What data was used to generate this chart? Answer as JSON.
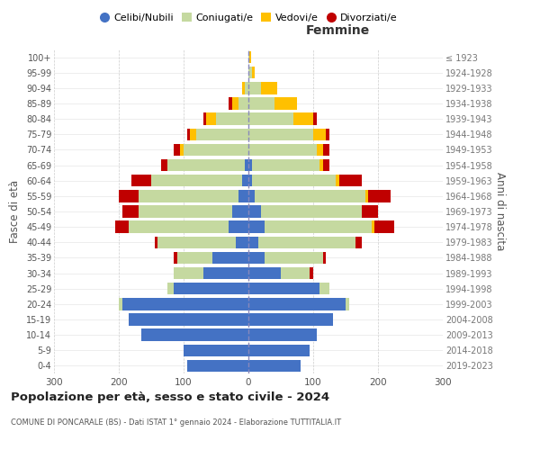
{
  "age_groups": [
    "0-4",
    "5-9",
    "10-14",
    "15-19",
    "20-24",
    "25-29",
    "30-34",
    "35-39",
    "40-44",
    "45-49",
    "50-54",
    "55-59",
    "60-64",
    "65-69",
    "70-74",
    "75-79",
    "80-84",
    "85-89",
    "90-94",
    "95-99",
    "100+"
  ],
  "birth_years": [
    "2019-2023",
    "2014-2018",
    "2009-2013",
    "2004-2008",
    "1999-2003",
    "1994-1998",
    "1989-1993",
    "1984-1988",
    "1979-1983",
    "1974-1978",
    "1969-1973",
    "1964-1968",
    "1959-1963",
    "1954-1958",
    "1949-1953",
    "1944-1948",
    "1939-1943",
    "1934-1938",
    "1929-1933",
    "1924-1928",
    "≤ 1923"
  ],
  "male": {
    "celibe": [
      95,
      100,
      165,
      185,
      195,
      115,
      70,
      55,
      20,
      30,
      25,
      15,
      10,
      5,
      0,
      0,
      0,
      0,
      0,
      0,
      0
    ],
    "coniugato": [
      0,
      0,
      0,
      0,
      5,
      10,
      45,
      55,
      120,
      155,
      145,
      155,
      140,
      120,
      100,
      80,
      50,
      15,
      5,
      0,
      0
    ],
    "vedovo": [
      0,
      0,
      0,
      0,
      0,
      0,
      0,
      0,
      0,
      0,
      0,
      0,
      0,
      0,
      5,
      10,
      15,
      10,
      5,
      0,
      0
    ],
    "divorziato": [
      0,
      0,
      0,
      0,
      0,
      0,
      0,
      5,
      5,
      20,
      25,
      30,
      30,
      10,
      10,
      5,
      5,
      5,
      0,
      0,
      0
    ]
  },
  "female": {
    "nubile": [
      80,
      95,
      105,
      130,
      150,
      110,
      50,
      25,
      15,
      25,
      20,
      10,
      5,
      5,
      0,
      0,
      0,
      0,
      0,
      0,
      0
    ],
    "coniugata": [
      0,
      0,
      0,
      0,
      5,
      15,
      45,
      90,
      150,
      165,
      155,
      170,
      130,
      105,
      105,
      100,
      70,
      40,
      20,
      5,
      2
    ],
    "vedova": [
      0,
      0,
      0,
      0,
      0,
      0,
      0,
      0,
      0,
      5,
      0,
      5,
      5,
      5,
      10,
      20,
      30,
      35,
      25,
      5,
      2
    ],
    "divorziata": [
      0,
      0,
      0,
      0,
      0,
      0,
      5,
      5,
      10,
      30,
      25,
      35,
      35,
      10,
      10,
      5,
      5,
      0,
      0,
      0,
      0
    ]
  },
  "colors": {
    "celibe": "#4472c4",
    "coniugato": "#c5d9a0",
    "vedovo": "#ffc000",
    "divorziato": "#c00000"
  },
  "title": "Popolazione per età, sesso e stato civile - 2024",
  "subtitle": "COMUNE DI PONCARALE (BS) - Dati ISTAT 1° gennaio 2024 - Elaborazione TUTTITALIA.IT",
  "xlabel_right": "Femmine",
  "ylabel_left": "Fasce di età",
  "ylabel_right": "Anni di nascita",
  "xlim": 300,
  "legend_labels": [
    "Celibi/Nubili",
    "Coniugati/e",
    "Vedovi/e",
    "Divorziati/e"
  ],
  "background_color": "#ffffff",
  "grid_color": "#cccccc"
}
